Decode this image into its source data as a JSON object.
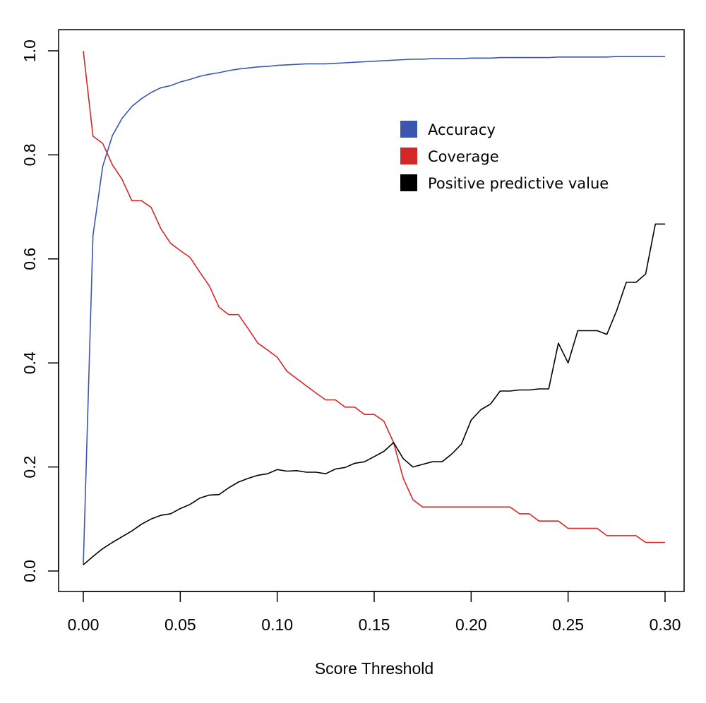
{
  "chart_data": {
    "type": "line",
    "title": "",
    "xlabel": "Score Threshold",
    "ylabel": "",
    "xlim": [
      0.0,
      0.3
    ],
    "ylim": [
      0.0,
      1.0
    ],
    "xticks": [
      "0.00",
      "0.05",
      "0.10",
      "0.15",
      "0.20",
      "0.25",
      "0.30"
    ],
    "yticks": [
      "0.0",
      "0.2",
      "0.4",
      "0.6",
      "0.8",
      "1.0"
    ],
    "legend_position": "top-right",
    "x": [
      0.0,
      0.005,
      0.01,
      0.015,
      0.02,
      0.025,
      0.03,
      0.035,
      0.04,
      0.045,
      0.05,
      0.055,
      0.06,
      0.065,
      0.07,
      0.075,
      0.08,
      0.085,
      0.09,
      0.095,
      0.1,
      0.105,
      0.11,
      0.115,
      0.12,
      0.125,
      0.13,
      0.135,
      0.14,
      0.145,
      0.15,
      0.155,
      0.16,
      0.165,
      0.17,
      0.175,
      0.18,
      0.185,
      0.19,
      0.195,
      0.2,
      0.205,
      0.21,
      0.215,
      0.22,
      0.225,
      0.23,
      0.235,
      0.24,
      0.245,
      0.25,
      0.255,
      0.26,
      0.265,
      0.27,
      0.275,
      0.28,
      0.285,
      0.29,
      0.295,
      0.3
    ],
    "series": [
      {
        "name": "Accuracy",
        "color": "#3b55b0",
        "values": [
          0.012,
          0.645,
          0.778,
          0.837,
          0.87,
          0.893,
          0.908,
          0.92,
          0.929,
          0.933,
          0.94,
          0.945,
          0.951,
          0.955,
          0.958,
          0.962,
          0.965,
          0.967,
          0.969,
          0.97,
          0.972,
          0.973,
          0.974,
          0.975,
          0.975,
          0.975,
          0.976,
          0.977,
          0.978,
          0.979,
          0.98,
          0.981,
          0.982,
          0.983,
          0.984,
          0.984,
          0.985,
          0.985,
          0.985,
          0.985,
          0.986,
          0.986,
          0.986,
          0.987,
          0.987,
          0.987,
          0.987,
          0.987,
          0.987,
          0.988,
          0.988,
          0.988,
          0.988,
          0.988,
          0.988,
          0.989,
          0.989,
          0.989,
          0.989,
          0.989,
          0.989
        ]
      },
      {
        "name": "Coverage",
        "color": "#d62728",
        "values": [
          1.0,
          0.836,
          0.822,
          0.781,
          0.753,
          0.712,
          0.712,
          0.699,
          0.658,
          0.63,
          0.616,
          0.603,
          0.575,
          0.548,
          0.507,
          0.493,
          0.493,
          0.466,
          0.438,
          0.425,
          0.411,
          0.384,
          0.37,
          0.356,
          0.342,
          0.329,
          0.329,
          0.315,
          0.315,
          0.301,
          0.301,
          0.288,
          0.247,
          0.178,
          0.137,
          0.123,
          0.123,
          0.123,
          0.123,
          0.123,
          0.123,
          0.123,
          0.123,
          0.123,
          0.123,
          0.11,
          0.11,
          0.096,
          0.096,
          0.096,
          0.082,
          0.082,
          0.082,
          0.082,
          0.068,
          0.068,
          0.068,
          0.068,
          0.055,
          0.055,
          0.055
        ]
      },
      {
        "name": "Positive predictive value",
        "color": "#000000",
        "values": [
          0.012,
          0.028,
          0.043,
          0.055,
          0.066,
          0.077,
          0.09,
          0.1,
          0.107,
          0.11,
          0.12,
          0.128,
          0.14,
          0.146,
          0.147,
          0.16,
          0.171,
          0.178,
          0.184,
          0.187,
          0.195,
          0.192,
          0.193,
          0.19,
          0.19,
          0.187,
          0.196,
          0.199,
          0.207,
          0.21,
          0.22,
          0.23,
          0.247,
          0.216,
          0.2,
          0.205,
          0.21,
          0.21,
          0.225,
          0.244,
          0.29,
          0.31,
          0.321,
          0.346,
          0.346,
          0.348,
          0.348,
          0.35,
          0.35,
          0.438,
          0.4,
          0.462,
          0.462,
          0.462,
          0.455,
          0.5,
          0.555,
          0.555,
          0.571,
          0.667,
          0.667
        ]
      }
    ]
  }
}
